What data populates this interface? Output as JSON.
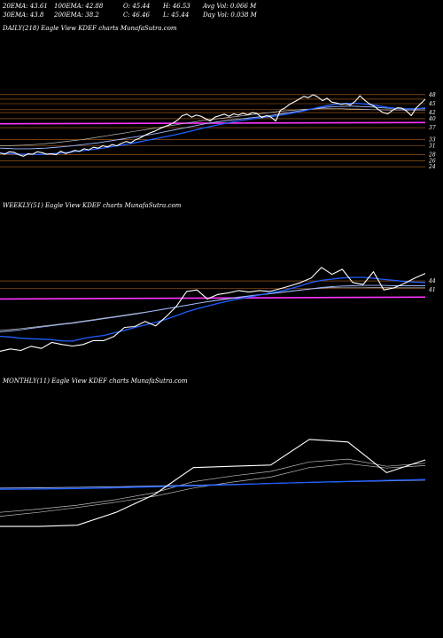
{
  "header": {
    "row1": {
      "ema20": "20EMA: 43.61",
      "ema100": "100EMA: 42.88",
      "open": "O: 45.44",
      "high": "H: 46.53",
      "avgvol": "Avg Vol: 0.066  M"
    },
    "row2": {
      "ema30": "30EMA: 43.8",
      "ema200": "200EMA: 38.2",
      "close": "C: 46.46",
      "low": "L: 45.44",
      "dayvol": "Day Vol: 0.038  M"
    }
  },
  "colors": {
    "price": "#ffffff",
    "ema_fast": "#1f5fff",
    "ema_slow": "#9fb8ff",
    "ema_grey": "#bbbbbb",
    "level_line": "#b8661f",
    "magenta": "#ff33ff"
  },
  "chart_data": [
    {
      "type": "line",
      "panel": "daily",
      "label": "DAILY(218) Eagle  View  KDEF charts MunafaSutra.com",
      "ylim": [
        22,
        50
      ],
      "yticks": [
        48,
        45,
        42,
        40,
        37,
        33,
        31,
        28,
        26,
        24
      ],
      "levels": [
        48,
        46.5,
        45,
        43,
        42,
        40,
        37,
        33,
        31,
        28,
        26,
        24
      ],
      "magenta_level": [
        38.3,
        38.7
      ],
      "series": [
        {
          "role": "price",
          "values": [
            28.6,
            28.2,
            29.0,
            28.8,
            28.0,
            27.5,
            28.3,
            28.2,
            29.0,
            28.7,
            28.2,
            28.3,
            28.0,
            29.2,
            28.4,
            28.8,
            29.5,
            29.1,
            30.0,
            29.6,
            30.5,
            30.2,
            31.0,
            30.6,
            31.4,
            31.0,
            31.8,
            32.4,
            32.0,
            33.0,
            33.6,
            34.5,
            35.2,
            35.8,
            36.5,
            37.2,
            37.8,
            38.5,
            39.5,
            41.0,
            41.5,
            40.5,
            41.2,
            40.8,
            40.0,
            39.2,
            40.5,
            41.0,
            41.5,
            40.8,
            41.6,
            41.2,
            41.8,
            41.3,
            42.0,
            41.7,
            40.4,
            41.0,
            40.5,
            39.2,
            42.8,
            43.6,
            44.8,
            45.6,
            46.5,
            47.4,
            47.0,
            48.0,
            47.2,
            46.0,
            46.8,
            45.5,
            45.2,
            44.8,
            45.0,
            44.6,
            45.8,
            47.6,
            46.2,
            45.0,
            44.2,
            43.0,
            42.0,
            41.6,
            42.8,
            43.6,
            43.5,
            42.5,
            41.0,
            43.5,
            45.0,
            46.46
          ]
        },
        {
          "role": "ema_fast",
          "values": [
            28.5,
            28.4,
            28.3,
            28.2,
            28.2,
            28.1,
            28.2,
            28.4,
            28.6,
            28.8,
            29.1,
            29.4,
            29.7,
            30.0,
            30.4,
            30.8,
            31.2,
            31.6,
            32.1,
            32.6,
            33.1,
            33.6,
            34.1,
            34.6,
            35.2,
            35.8,
            36.4,
            37.0,
            37.6,
            38.1,
            38.6,
            39.1,
            39.5,
            39.9,
            40.2,
            40.5,
            40.8,
            41.2,
            41.6,
            42.1,
            42.6,
            43.2,
            43.8,
            44.3,
            44.7,
            45.0,
            45.1,
            45.1,
            44.9,
            44.6,
            44.2,
            43.8,
            43.5,
            43.3,
            43.2,
            43.3,
            43.6
          ]
        },
        {
          "role": "ema_slow",
          "values": [
            30.2,
            30.1,
            30.0,
            30.0,
            30.0,
            30.1,
            30.2,
            30.4,
            30.6,
            30.8,
            31.1,
            31.4,
            31.7,
            32.0,
            32.4,
            32.8,
            33.2,
            33.6,
            34.0,
            34.4,
            34.8,
            35.3,
            35.8,
            36.3,
            36.8,
            37.3,
            37.8,
            38.3,
            38.7,
            39.1,
            39.4,
            39.7,
            40.0,
            40.3,
            40.6,
            40.9,
            41.2,
            41.6,
            42.0,
            42.4,
            42.8,
            43.2,
            43.5,
            43.8,
            44.0,
            44.1,
            44.2,
            44.1,
            44.0,
            43.9,
            43.7,
            43.5,
            43.4,
            43.3,
            43.3,
            43.3,
            43.4
          ]
        },
        {
          "role": "ema_grey",
          "values": [
            31.0,
            31.0,
            31.1,
            31.2,
            31.3,
            31.5,
            31.7,
            31.9,
            32.2,
            32.5,
            32.8,
            33.1,
            33.5,
            33.9,
            34.3,
            34.7,
            35.1,
            35.5,
            35.9,
            36.3,
            36.7,
            37.1,
            37.5,
            37.9,
            38.3,
            38.7,
            39.1,
            39.5,
            39.8,
            40.1,
            40.4,
            40.7,
            41.0,
            41.3,
            41.6,
            41.9,
            42.2,
            42.5,
            42.7,
            42.9,
            43.1,
            43.2,
            43.3,
            43.3,
            43.3,
            43.3,
            43.2,
            43.2,
            43.1,
            43.0,
            43.0,
            42.9,
            42.9,
            42.9,
            42.9,
            42.9,
            42.9
          ]
        }
      ]
    },
    {
      "type": "line",
      "panel": "weekly",
      "label": "WEEKLY(51) Eagle  View  KDEF charts MunafaSutra.com",
      "ylim": [
        18,
        52
      ],
      "yticks": [
        44,
        41
      ],
      "levels": [
        44,
        41.5
      ],
      "magenta_level": [
        38.0,
        38.6
      ],
      "series": [
        {
          "role": "price",
          "values": [
            20.5,
            21.3,
            20.8,
            22.2,
            21.5,
            23.5,
            22.8,
            22.3,
            22.8,
            24.1,
            24.1,
            25.5,
            28.5,
            28.8,
            30.5,
            29.0,
            32.0,
            35.5,
            40.5,
            41.0,
            38.0,
            39.5,
            40.0,
            40.8,
            40.3,
            40.8,
            40.5,
            41.4,
            42.4,
            43.5,
            45.0,
            48.5,
            46.2,
            47.9,
            43.5,
            42.8,
            47.1,
            41.0,
            41.7,
            43.2,
            45.0,
            46.5
          ]
        },
        {
          "role": "ema_fast",
          "values": [
            25.5,
            25.3,
            24.9,
            24.7,
            24.6,
            24.4,
            24.0,
            23.9,
            24.8,
            25.4,
            25.8,
            26.7,
            27.5,
            28.5,
            29.3,
            30.2,
            31.2,
            32.4,
            33.7,
            34.7,
            35.6,
            36.5,
            37.3,
            38.0,
            38.6,
            39.3,
            40.0,
            40.6,
            41.4,
            42.4,
            43.5,
            44.2,
            44.6,
            45.0,
            45.2,
            45.2,
            44.9,
            44.5,
            44.2,
            43.8,
            43.6,
            43.5
          ]
        },
        {
          "role": "ema_slow",
          "values": [
            27.0,
            27.3,
            27.7,
            28.2,
            28.6,
            29.1,
            29.5,
            29.9,
            30.4,
            30.9,
            31.4,
            31.9,
            32.4,
            32.9,
            33.5,
            34.1,
            34.7,
            35.3,
            35.9,
            36.5,
            37.1,
            37.6,
            38.1,
            38.6,
            39.0,
            39.4,
            39.8,
            40.2,
            40.6,
            41.0,
            41.4,
            41.8,
            42.1,
            42.3,
            42.4,
            42.5,
            42.5,
            42.5,
            42.4,
            42.4,
            42.4,
            42.4
          ]
        },
        {
          "role": "ema_grey",
          "values": [
            27.5,
            27.8,
            28.1,
            28.5,
            28.9,
            29.3,
            29.7,
            30.1,
            30.6,
            31.1,
            31.6,
            32.1,
            32.6,
            33.1,
            33.6,
            34.1,
            34.7,
            35.3,
            35.9,
            36.5,
            37.0,
            37.5,
            38.0,
            38.5,
            38.9,
            39.3,
            39.7,
            40.1,
            40.5,
            40.9,
            41.3,
            41.6,
            41.8,
            41.9,
            41.9,
            41.9,
            41.8,
            41.8,
            41.7,
            41.7,
            41.7,
            41.7
          ]
        }
      ]
    },
    {
      "type": "line",
      "panel": "monthly",
      "label": "MONTHLY(11) Eagle  View  KDEF charts MunafaSutra.com",
      "ylim": [
        15,
        60
      ],
      "yticks": [],
      "levels": [],
      "magenta_level": [],
      "series": [
        {
          "role": "price",
          "values": [
            20.5,
            20.5,
            21.0,
            26.0,
            33.0,
            43.5,
            44.0,
            44.5,
            54.5,
            53.5,
            41.5,
            46.5
          ]
        },
        {
          "role": "ema_fast",
          "values": [
            35.0,
            35.1,
            35.3,
            35.6,
            36.0,
            36.4,
            36.8,
            37.3,
            37.7,
            38.1,
            38.5,
            38.8
          ]
        },
        {
          "role": "ema_slow",
          "values": [
            35.5,
            35.6,
            35.8,
            36.0,
            36.3,
            36.6,
            36.9,
            37.3,
            37.7,
            38.0,
            38.3,
            38.6
          ]
        },
        {
          "role": "ema_grey",
          "values": [
            26.0,
            27.3,
            28.8,
            31.0,
            33.7,
            38.0,
            40.2,
            42.0,
            45.7,
            46.8,
            44.0,
            45.2
          ]
        },
        {
          "role": "ema_grey",
          "values": [
            24.5,
            26.0,
            27.9,
            30.0,
            32.3,
            35.5,
            37.8,
            39.8,
            43.5,
            45.0,
            43.3,
            44.3
          ]
        }
      ]
    }
  ]
}
